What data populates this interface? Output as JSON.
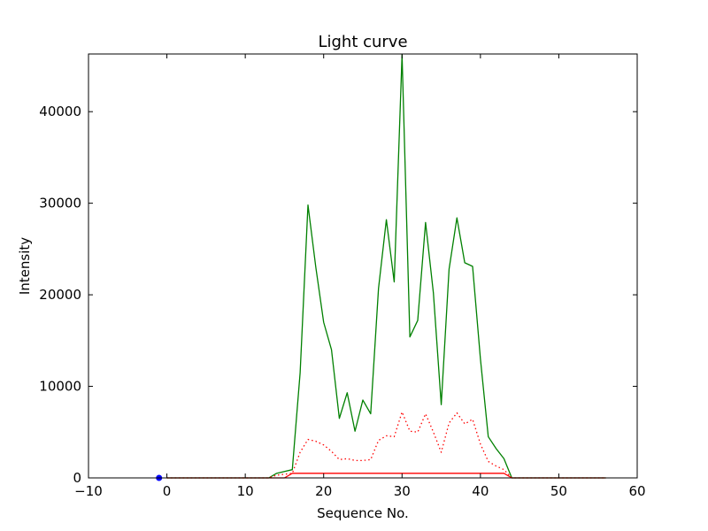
{
  "chart_data": {
    "type": "line",
    "title": "Light curve",
    "xlabel": "Sequence No.",
    "ylabel": "Intensity",
    "xlim": [
      -10,
      60
    ],
    "ylim": [
      0,
      46300
    ],
    "xticks": [
      -10,
      0,
      10,
      20,
      30,
      40,
      50,
      60
    ],
    "xtick_labels": [
      "−10",
      "0",
      "10",
      "20",
      "30",
      "40",
      "50",
      "60"
    ],
    "yticks": [
      0,
      10000,
      20000,
      30000,
      40000
    ],
    "ytick_labels": [
      "0",
      "10000",
      "20000",
      "30000",
      "40000"
    ],
    "grid": false,
    "colors": {
      "green": "#008000",
      "red": "#ff0000",
      "blue": "#0000ff"
    },
    "series": [
      {
        "style": "solid",
        "color": "#008000",
        "x": [
          0,
          1,
          2,
          3,
          4,
          5,
          6,
          7,
          8,
          9,
          10,
          11,
          12,
          13,
          14,
          15,
          16,
          17,
          18,
          19,
          20,
          21,
          22,
          23,
          24,
          25,
          26,
          27,
          28,
          29,
          30,
          31,
          32,
          33,
          34,
          35,
          36,
          37,
          38,
          39,
          40,
          41,
          42,
          43,
          44,
          45,
          46,
          47,
          48,
          49,
          50,
          51,
          52,
          53,
          54,
          55,
          56
        ],
        "y": [
          0,
          0,
          0,
          0,
          0,
          0,
          0,
          0,
          0,
          0,
          0,
          0,
          0,
          0,
          500,
          700,
          900,
          11500,
          29800,
          23000,
          17000,
          14000,
          6500,
          9300,
          5100,
          8500,
          7000,
          20700,
          28200,
          21400,
          46200,
          15400,
          17200,
          27900,
          20200,
          8000,
          22800,
          28400,
          23500,
          23100,
          13000,
          4500,
          3200,
          2100,
          0,
          0,
          0,
          0,
          0,
          0,
          0,
          0,
          0,
          0,
          0,
          0,
          0
        ]
      },
      {
        "style": "dotted",
        "color": "#ff0000",
        "x": [
          0,
          1,
          2,
          3,
          4,
          5,
          6,
          7,
          8,
          9,
          10,
          11,
          12,
          13,
          14,
          15,
          16,
          17,
          18,
          19,
          20,
          21,
          22,
          23,
          24,
          25,
          26,
          27,
          28,
          29,
          30,
          31,
          32,
          33,
          34,
          35,
          36,
          37,
          38,
          39,
          40,
          41,
          42,
          43,
          44,
          45,
          46,
          47,
          48,
          49,
          50,
          51,
          52,
          53,
          54,
          55,
          56
        ],
        "y": [
          0,
          0,
          0,
          0,
          0,
          0,
          0,
          0,
          0,
          0,
          0,
          0,
          0,
          0,
          300,
          400,
          500,
          2800,
          4200,
          4000,
          3600,
          2900,
          2000,
          2100,
          1900,
          1900,
          2000,
          4100,
          4600,
          4500,
          7200,
          5100,
          5000,
          7000,
          5000,
          2800,
          6000,
          7100,
          5900,
          6400,
          3700,
          1800,
          1300,
          900,
          0,
          0,
          0,
          0,
          0,
          0,
          0,
          0,
          0,
          0,
          0,
          0,
          0
        ]
      },
      {
        "style": "solid",
        "color": "#ff0000",
        "x": [
          0,
          1,
          2,
          3,
          4,
          5,
          6,
          7,
          8,
          9,
          10,
          11,
          12,
          13,
          14,
          15,
          16,
          17,
          18,
          19,
          20,
          21,
          22,
          23,
          24,
          25,
          26,
          27,
          28,
          29,
          30,
          31,
          32,
          33,
          34,
          35,
          36,
          37,
          38,
          39,
          40,
          41,
          42,
          43,
          44,
          45,
          46,
          47,
          48,
          49,
          50,
          51,
          52,
          53,
          54,
          55,
          56
        ],
        "y": [
          0,
          0,
          0,
          0,
          0,
          0,
          0,
          0,
          0,
          0,
          0,
          0,
          0,
          0,
          0,
          0,
          500,
          500,
          500,
          500,
          500,
          500,
          500,
          500,
          500,
          500,
          500,
          500,
          500,
          500,
          500,
          500,
          500,
          500,
          500,
          500,
          500,
          500,
          500,
          500,
          500,
          500,
          500,
          500,
          0,
          0,
          0,
          0,
          0,
          0,
          0,
          0,
          0,
          0,
          0,
          0,
          0
        ]
      },
      {
        "style": "marker",
        "color": "#0000ff",
        "x": [
          -1
        ],
        "y": [
          0
        ]
      }
    ]
  }
}
